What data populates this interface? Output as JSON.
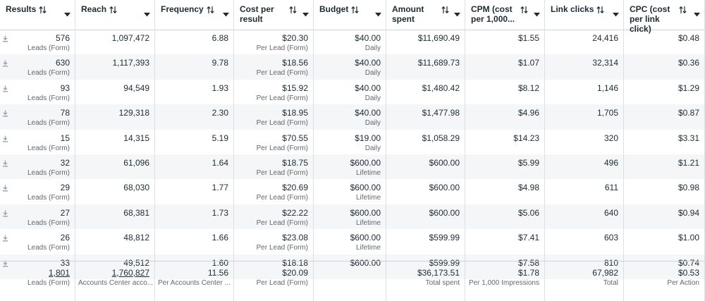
{
  "table": {
    "columns": [
      "Results",
      "Reach",
      "Frequency",
      "Cost per result",
      "Budget",
      "Amount spent",
      "CPM (cost per 1,000...",
      "Link clicks",
      "CPC (cost per link click)"
    ],
    "rows": [
      [
        {
          "text": "576",
          "sub": "Leads (Form)"
        },
        {
          "text": "1,097,472"
        },
        {
          "text": "6.88"
        },
        {
          "text": "$20.30",
          "sub": "Per Lead (Form)"
        },
        {
          "text": "$40.00",
          "sub": "Daily"
        },
        {
          "text": "$11,690.49"
        },
        {
          "text": "$1.55"
        },
        {
          "text": "24,416"
        },
        {
          "text": "$0.48"
        }
      ],
      [
        {
          "text": "630",
          "sub": "Leads (Form)"
        },
        {
          "text": "1,117,393"
        },
        {
          "text": "9.78"
        },
        {
          "text": "$18.56",
          "sub": "Per Lead (Form)"
        },
        {
          "text": "$40.00",
          "sub": "Daily"
        },
        {
          "text": "$11,689.73"
        },
        {
          "text": "$1.07"
        },
        {
          "text": "32,314"
        },
        {
          "text": "$0.36"
        }
      ],
      [
        {
          "text": "93",
          "sub": "Leads (Form)"
        },
        {
          "text": "94,549"
        },
        {
          "text": "1.93"
        },
        {
          "text": "$15.92",
          "sub": "Per Lead (Form)"
        },
        {
          "text": "$40.00",
          "sub": "Daily"
        },
        {
          "text": "$1,480.42"
        },
        {
          "text": "$8.12"
        },
        {
          "text": "1,146"
        },
        {
          "text": "$1.29"
        }
      ],
      [
        {
          "text": "78",
          "sub": "Leads (Form)"
        },
        {
          "text": "129,318"
        },
        {
          "text": "2.30"
        },
        {
          "text": "$18.95",
          "sub": "Per Lead (Form)"
        },
        {
          "text": "$40.00",
          "sub": "Daily"
        },
        {
          "text": "$1,477.98"
        },
        {
          "text": "$4.96"
        },
        {
          "text": "1,705"
        },
        {
          "text": "$0.87"
        }
      ],
      [
        {
          "text": "15",
          "sub": "Leads (Form)"
        },
        {
          "text": "14,315"
        },
        {
          "text": "5.19"
        },
        {
          "text": "$70.55",
          "sub": "Per Lead (Form)"
        },
        {
          "text": "$19.00",
          "sub": "Daily"
        },
        {
          "text": "$1,058.29"
        },
        {
          "text": "$14.23"
        },
        {
          "text": "320"
        },
        {
          "text": "$3.31"
        }
      ],
      [
        {
          "text": "32",
          "sub": "Leads (Form)"
        },
        {
          "text": "61,096"
        },
        {
          "text": "1.64"
        },
        {
          "text": "$18.75",
          "sub": "Per Lead (Form)"
        },
        {
          "text": "$600.00",
          "sub": "Lifetime"
        },
        {
          "text": "$600.00"
        },
        {
          "text": "$5.99"
        },
        {
          "text": "496"
        },
        {
          "text": "$1.21"
        }
      ],
      [
        {
          "text": "29",
          "sub": "Leads (Form)"
        },
        {
          "text": "68,030"
        },
        {
          "text": "1.77"
        },
        {
          "text": "$20.69",
          "sub": "Per Lead (Form)"
        },
        {
          "text": "$600.00",
          "sub": "Lifetime"
        },
        {
          "text": "$600.00"
        },
        {
          "text": "$4.98"
        },
        {
          "text": "611"
        },
        {
          "text": "$0.98"
        }
      ],
      [
        {
          "text": "27",
          "sub": "Leads (Form)"
        },
        {
          "text": "68,381"
        },
        {
          "text": "1.73"
        },
        {
          "text": "$22.22",
          "sub": "Per Lead (Form)"
        },
        {
          "text": "$600.00",
          "sub": "Lifetime"
        },
        {
          "text": "$600.00"
        },
        {
          "text": "$5.06"
        },
        {
          "text": "640"
        },
        {
          "text": "$0.94"
        }
      ],
      [
        {
          "text": "26",
          "sub": "Leads (Form)"
        },
        {
          "text": "48,812"
        },
        {
          "text": "1.66"
        },
        {
          "text": "$23.08",
          "sub": "Per Lead (Form)"
        },
        {
          "text": "$600.00",
          "sub": "Lifetime"
        },
        {
          "text": "$599.99"
        },
        {
          "text": "$7.41"
        },
        {
          "text": "603"
        },
        {
          "text": "$1.00"
        }
      ],
      [
        {
          "text": "33"
        },
        {
          "text": "49,512"
        },
        {
          "text": "1.60"
        },
        {
          "text": "$18.18"
        },
        {
          "text": "$600.00"
        },
        {
          "text": "$599.99"
        },
        {
          "text": "$7.58"
        },
        {
          "text": "810"
        },
        {
          "text": "$0.74"
        }
      ]
    ],
    "summary": [
      {
        "text": "1,801",
        "sub": "Leads (Form)"
      },
      {
        "text": "1,760,827",
        "sub": "Accounts Center acco..."
      },
      {
        "text": "11.56",
        "sub": "Per Accounts Center ..."
      },
      {
        "text": "$20.09",
        "sub": "Per Lead (Form)"
      },
      null,
      {
        "text": "$36,173.51",
        "sub": "Total spent"
      },
      {
        "text": "$1.78",
        "sub": "Per 1,000 Impressions"
      },
      {
        "text": "67,982",
        "sub": "Total"
      },
      {
        "text": "$0.53",
        "sub": "Per Action"
      }
    ]
  }
}
